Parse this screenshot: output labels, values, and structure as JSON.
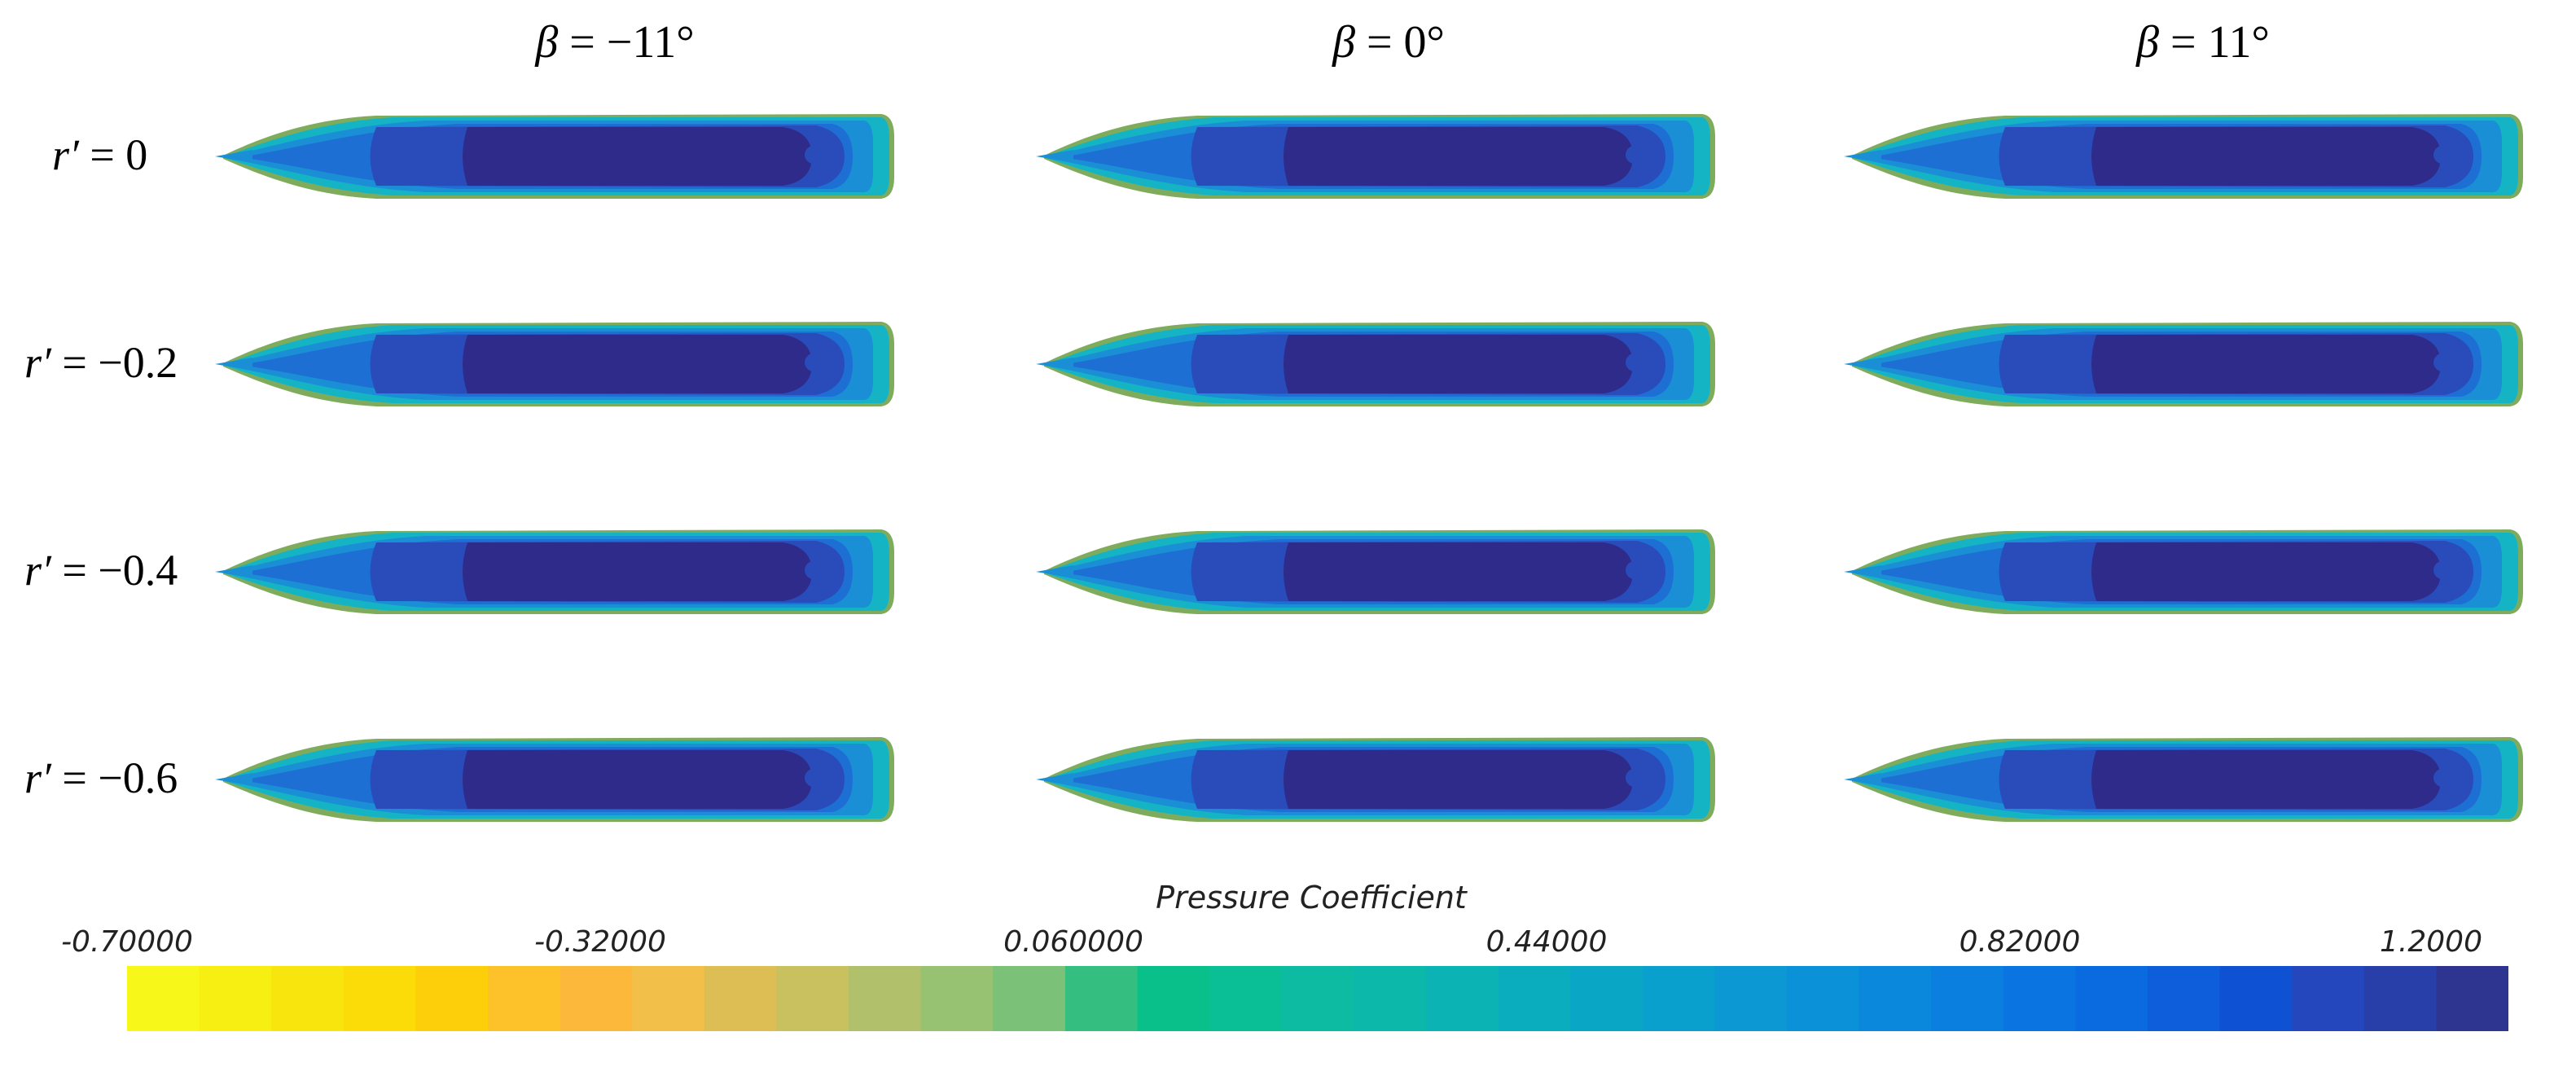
{
  "column_headers": [
    {
      "symbol": "β",
      "text": " = −11°"
    },
    {
      "symbol": "β",
      "text": " = 0°"
    },
    {
      "symbol": "β",
      "text": " = 11°"
    }
  ],
  "row_labels": [
    {
      "symbol": "r′",
      "text": " = 0"
    },
    {
      "symbol": "r′",
      "text": " = −0.2"
    },
    {
      "symbol": "r′",
      "text": " = −0.4"
    },
    {
      "symbol": "r′",
      "text": " = −0.6"
    }
  ],
  "colorbar": {
    "title": "Pressure Coefficient",
    "ticks": [
      "-0.70000",
      "-0.32000",
      "0.060000",
      "0.44000",
      "0.82000",
      "1.2000"
    ],
    "colors": [
      "#f7f81a",
      "#f7ef12",
      "#f8e50d",
      "#fbdc08",
      "#fdcf0a",
      "#fdc12a",
      "#fcb83a",
      "#f2bf48",
      "#dcbe55",
      "#c9c060",
      "#b1c06a",
      "#97c272",
      "#7bc278",
      "#34bf80",
      "#09c08a",
      "#0abf95",
      "#0cbba2",
      "#0bb8aa",
      "#0bb3b5",
      "#0aadbe",
      "#09a6c6",
      "#0aa0ce",
      "#0b98d3",
      "#0b91d7",
      "#0a88db",
      "#0a7fdf",
      "#0a75e0",
      "#0a6ae0",
      "#0e5ddb",
      "#0e52d3",
      "#2447be",
      "#283ea8",
      "#2e3590"
    ]
  },
  "hull_colors": {
    "outer": "#7fac5c",
    "rim": "#15b4c4",
    "band1": "#1b8fd6",
    "band2": "#1e6fd4",
    "band3": "#2a4cba",
    "core": "#2e2b8a"
  }
}
